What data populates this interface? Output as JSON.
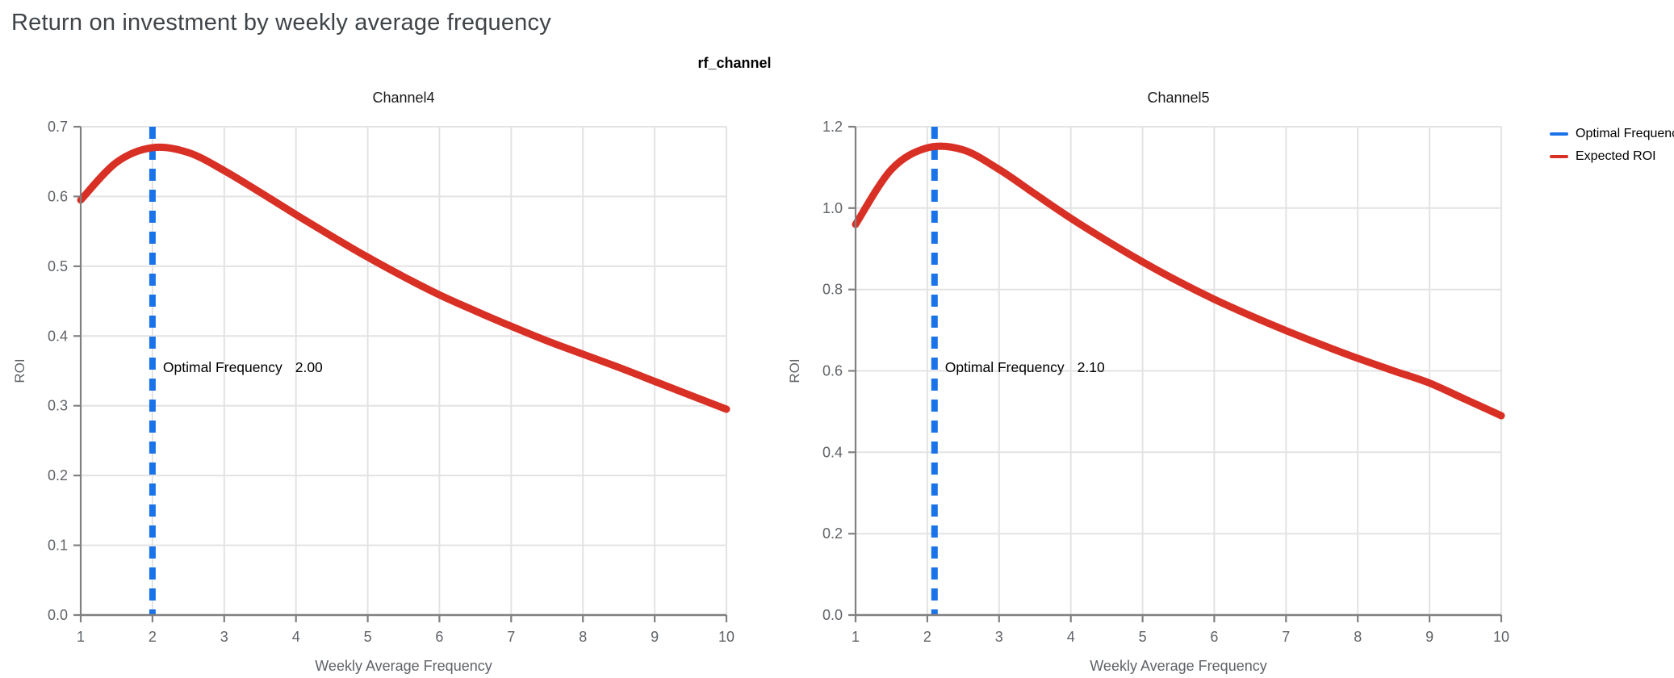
{
  "title": "Return on investment by weekly average frequency",
  "facet_title": "rf_channel",
  "colors": {
    "optimal_frequency_blue": "#1a73e8",
    "expected_roi_red": "#d93025",
    "grid": "#e3e3e3",
    "axis_domain": "#808080",
    "tick_label": "#5f6368",
    "axis_title": "#5f6368",
    "chart_title": "#1a1a1a",
    "page_title": "#3f4449",
    "annotation_text": "#000000"
  },
  "legend": {
    "items": [
      {
        "label": "Optimal Frequency",
        "color": "#1a73e8"
      },
      {
        "label": "Expected ROI",
        "color": "#d93025"
      }
    ]
  },
  "chart_data": [
    {
      "type": "line",
      "title": "Channel4",
      "xlabel": "Weekly Average Frequency",
      "ylabel": "ROI",
      "xlim": [
        1,
        10
      ],
      "ylim": [
        0,
        0.7
      ],
      "grid": true,
      "x_ticks": [
        1,
        2,
        3,
        4,
        5,
        6,
        7,
        8,
        9,
        10
      ],
      "y_ticks": [
        {
          "value": 0.0,
          "label": "0.0"
        },
        {
          "value": 0.1,
          "label": "0.1"
        },
        {
          "value": 0.2,
          "label": "0.2"
        },
        {
          "value": 0.3,
          "label": "0.3"
        },
        {
          "value": 0.4,
          "label": "0.4"
        },
        {
          "value": 0.5,
          "label": "0.5"
        },
        {
          "value": 0.6,
          "label": "0.6"
        },
        {
          "value": 0.7,
          "label": "0.7"
        }
      ],
      "optimal_frequency": 2.0,
      "annotation": {
        "label": "Optimal Frequency",
        "value": "2.00"
      },
      "series": [
        {
          "name": "Expected ROI",
          "points": [
            [
              1.0,
              0.595
            ],
            [
              1.5,
              0.649
            ],
            [
              2.0,
              0.67
            ],
            [
              2.5,
              0.663
            ],
            [
              3.0,
              0.637
            ],
            [
              3.5,
              0.606
            ],
            [
              4.0,
              0.574
            ],
            [
              4.5,
              0.543
            ],
            [
              5.0,
              0.513
            ],
            [
              5.5,
              0.485
            ],
            [
              6.0,
              0.459
            ],
            [
              6.5,
              0.436
            ],
            [
              7.0,
              0.414
            ],
            [
              7.5,
              0.393
            ],
            [
              8.0,
              0.374
            ],
            [
              8.5,
              0.355
            ],
            [
              9.0,
              0.335
            ],
            [
              9.5,
              0.315
            ],
            [
              10.0,
              0.295
            ]
          ]
        }
      ]
    },
    {
      "type": "line",
      "title": "Channel5",
      "xlabel": "Weekly Average Frequency",
      "ylabel": "ROI",
      "xlim": [
        1,
        10
      ],
      "ylim": [
        0,
        1.2
      ],
      "grid": true,
      "x_ticks": [
        1,
        2,
        3,
        4,
        5,
        6,
        7,
        8,
        9,
        10
      ],
      "y_ticks": [
        {
          "value": 0.0,
          "label": "0.0"
        },
        {
          "value": 0.2,
          "label": "0.2"
        },
        {
          "value": 0.4,
          "label": "0.4"
        },
        {
          "value": 0.6,
          "label": "0.6"
        },
        {
          "value": 0.8,
          "label": "0.8"
        },
        {
          "value": 1.0,
          "label": "1.0"
        },
        {
          "value": 1.2,
          "label": "1.2"
        }
      ],
      "optimal_frequency": 2.1,
      "annotation": {
        "label": "Optimal Frequency",
        "value": "2.10"
      },
      "series": [
        {
          "name": "Expected ROI",
          "points": [
            [
              1.0,
              0.96
            ],
            [
              1.5,
              1.095
            ],
            [
              2.0,
              1.148
            ],
            [
              2.5,
              1.143
            ],
            [
              3.0,
              1.095
            ],
            [
              3.5,
              1.035
            ],
            [
              4.0,
              0.975
            ],
            [
              4.5,
              0.92
            ],
            [
              5.0,
              0.868
            ],
            [
              5.5,
              0.82
            ],
            [
              6.0,
              0.776
            ],
            [
              6.5,
              0.736
            ],
            [
              7.0,
              0.699
            ],
            [
              7.5,
              0.664
            ],
            [
              8.0,
              0.631
            ],
            [
              8.5,
              0.6
            ],
            [
              9.0,
              0.57
            ],
            [
              9.5,
              0.53
            ],
            [
              10.0,
              0.49
            ]
          ]
        }
      ]
    }
  ]
}
